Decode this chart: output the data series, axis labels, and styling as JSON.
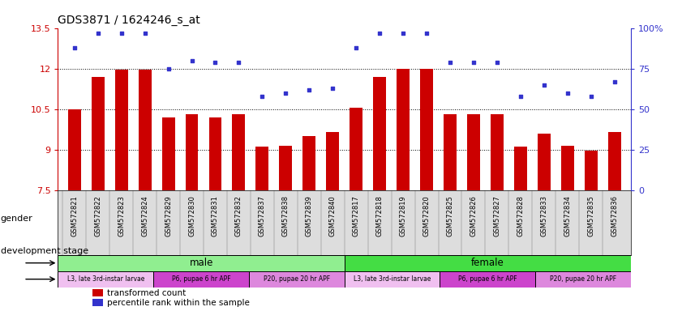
{
  "title": "GDS3871 / 1624246_s_at",
  "samples": [
    "GSM572821",
    "GSM572822",
    "GSM572823",
    "GSM572824",
    "GSM572829",
    "GSM572830",
    "GSM572831",
    "GSM572832",
    "GSM572837",
    "GSM572838",
    "GSM572839",
    "GSM572840",
    "GSM572817",
    "GSM572818",
    "GSM572819",
    "GSM572820",
    "GSM572825",
    "GSM572826",
    "GSM572827",
    "GSM572828",
    "GSM572833",
    "GSM572834",
    "GSM572835",
    "GSM572836"
  ],
  "bar_values": [
    10.5,
    11.7,
    11.95,
    11.95,
    10.2,
    10.3,
    10.2,
    10.3,
    9.1,
    9.15,
    9.5,
    9.65,
    10.55,
    11.7,
    12.0,
    12.0,
    10.3,
    10.3,
    10.3,
    9.1,
    9.6,
    9.15,
    8.95,
    9.65
  ],
  "dot_values": [
    88,
    97,
    97,
    97,
    75,
    80,
    79,
    79,
    58,
    60,
    62,
    63,
    88,
    97,
    97,
    97,
    79,
    79,
    79,
    58,
    65,
    60,
    58,
    67
  ],
  "bar_color": "#cc0000",
  "dot_color": "#3333cc",
  "ymin": 7.5,
  "ymax": 13.5,
  "yticks": [
    7.5,
    9.0,
    10.5,
    12.0,
    13.5
  ],
  "ytick_labels": [
    "7.5",
    "9",
    "10.5",
    "12",
    "13.5"
  ],
  "y2min": 0,
  "y2max": 100,
  "y2ticks": [
    0,
    25,
    50,
    75,
    100
  ],
  "y2tick_labels": [
    "0",
    "25",
    "50",
    "75",
    "100%"
  ],
  "hlines": [
    9.0,
    10.5,
    12.0
  ],
  "gender_male_count": 12,
  "gender_female_count": 12,
  "gender_male_label": "male",
  "gender_female_label": "female",
  "gender_male_color": "#90EE90",
  "gender_female_color": "#44DD44",
  "dev_stage_colors": [
    "#f0c0f0",
    "#cc44cc",
    "#dd88dd"
  ],
  "dev_stage_labels_male": [
    "L3, late 3rd-instar larvae",
    "P6, pupae 6 hr APF",
    "P20, pupae 20 hr APF"
  ],
  "dev_stage_labels_female": [
    "L3, late 3rd-instar larvae",
    "P6, pupae 6 hr APF",
    "P20, pupae 20 hr APF"
  ],
  "dev_stage_male_counts": [
    4,
    4,
    4
  ],
  "dev_stage_female_counts": [
    4,
    4,
    4
  ],
  "legend_bar_label": "transformed count",
  "legend_dot_label": "percentile rank within the sample",
  "gender_label": "gender",
  "dev_stage_label": "development stage",
  "bar_width": 0.55,
  "xtick_bg_color": "#dddddd"
}
